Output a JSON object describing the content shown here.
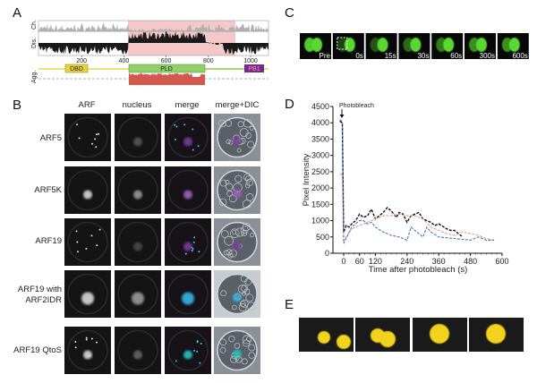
{
  "panels": {
    "A": "A",
    "B": "B",
    "C": "C",
    "D": "D",
    "E": "E"
  },
  "panel_a": {
    "tracks": [
      "Ch.",
      "Dis.",
      "Agg."
    ],
    "axis_ticks": [
      "200",
      "400",
      "600",
      "800",
      "1000"
    ],
    "domains": [
      {
        "label": "DBD",
        "color": "#e8d33a"
      },
      {
        "label": "PLD",
        "color": "#8fd06a"
      },
      {
        "label": "PB1",
        "color": "#7a2a8c"
      }
    ],
    "highlight_color": "#f4c8c8",
    "agg_color": "#d4584e"
  },
  "panel_b": {
    "columns": [
      "ARF",
      "nucleus",
      "merge",
      "merge+DIC"
    ],
    "rows": [
      "ARF5",
      "ARF5K",
      "ARF19",
      "ARF19 with",
      "ARF2IDR",
      "ARF19 QtoS"
    ]
  },
  "panel_c": {
    "timepoints": [
      "Pre",
      "0s",
      "15s",
      "30s",
      "60s",
      "300s",
      "600s"
    ]
  },
  "chart_data": {
    "type": "line",
    "title": "",
    "annotation": "Photobleach",
    "xlabel": "Time after photobleach (s)",
    "ylabel": "Pixel Intensity",
    "xlim": [
      -40,
      600
    ],
    "ylim": [
      0,
      4500
    ],
    "xticks": [
      "0",
      "60",
      "120",
      "240",
      "360",
      "480",
      "600"
    ],
    "yticks": [
      "0",
      "500",
      "1000",
      "1500",
      "2000",
      "2500",
      "3000",
      "3500",
      "4000",
      "4500"
    ],
    "line_style": "dashed",
    "grid": false,
    "series": [
      {
        "color": "#111111",
        "points": [
          [
            -15,
            4050
          ],
          [
            -5,
            4000
          ],
          [
            0,
            650
          ],
          [
            10,
            850
          ],
          [
            20,
            800
          ],
          [
            30,
            900
          ],
          [
            45,
            1000
          ],
          [
            60,
            1200
          ],
          [
            75,
            1100
          ],
          [
            90,
            1150
          ],
          [
            105,
            1350
          ],
          [
            120,
            1050
          ],
          [
            150,
            1250
          ],
          [
            165,
            1400
          ],
          [
            180,
            1300
          ],
          [
            200,
            1100
          ],
          [
            210,
            1250
          ],
          [
            225,
            1200
          ],
          [
            240,
            950
          ],
          [
            255,
            1150
          ],
          [
            270,
            1200
          ],
          [
            285,
            1250
          ],
          [
            300,
            1050
          ],
          [
            330,
            950
          ],
          [
            345,
            850
          ],
          [
            360,
            900
          ],
          [
            390,
            750
          ],
          [
            405,
            700
          ],
          [
            420,
            700
          ],
          [
            450,
            500
          ]
        ]
      },
      {
        "color": "#e09a94",
        "points": [
          [
            -15,
            2400
          ],
          [
            -5,
            2450
          ],
          [
            0,
            400
          ],
          [
            30,
            750
          ],
          [
            60,
            850
          ],
          [
            90,
            950
          ],
          [
            120,
            1050
          ],
          [
            150,
            1150
          ],
          [
            180,
            1150
          ],
          [
            210,
            1200
          ],
          [
            240,
            1150
          ],
          [
            270,
            1150
          ],
          [
            300,
            1050
          ],
          [
            330,
            800
          ],
          [
            360,
            700
          ],
          [
            390,
            600
          ],
          [
            420,
            550
          ],
          [
            450,
            650
          ],
          [
            480,
            600
          ],
          [
            510,
            550
          ],
          [
            540,
            450
          ],
          [
            570,
            400
          ]
        ]
      },
      {
        "color": "#4a78b0",
        "points": [
          [
            -15,
            4100
          ],
          [
            -5,
            4050
          ],
          [
            0,
            300
          ],
          [
            30,
            800
          ],
          [
            60,
            1000
          ],
          [
            75,
            1000
          ],
          [
            90,
            900
          ],
          [
            105,
            950
          ],
          [
            120,
            800
          ],
          [
            150,
            650
          ],
          [
            180,
            550
          ],
          [
            210,
            500
          ],
          [
            240,
            400
          ],
          [
            255,
            800
          ],
          [
            270,
            700
          ],
          [
            300,
            500
          ],
          [
            315,
            800
          ],
          [
            330,
            650
          ],
          [
            360,
            500
          ],
          [
            420,
            450
          ],
          [
            480,
            400
          ],
          [
            510,
            500
          ],
          [
            540,
            400
          ],
          [
            570,
            400
          ]
        ]
      }
    ]
  },
  "panel_e": {
    "frames": 4,
    "color": "#f2d21a"
  }
}
